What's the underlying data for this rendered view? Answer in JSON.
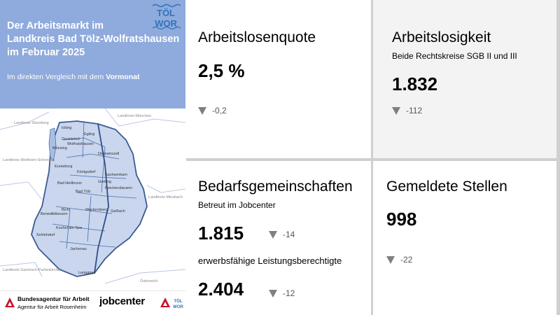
{
  "header": {
    "title_lines": [
      "Der Arbeitsmarkt im",
      "Landkreis Bad Tölz-Wolfratshausen",
      "im Februar 2025"
    ],
    "subtitle_prefix": "Im direkten Vergleich mit dem ",
    "subtitle_emph": "Vormonat",
    "logo_text_top": "TÖL",
    "logo_text_bottom": "WOR"
  },
  "map": {
    "region_labels": [
      "Icking",
      "Egling",
      "Münsing",
      "Geretsried",
      "Wolfratshausen",
      "Dietramszell",
      "Eurasburg",
      "Königsdorf",
      "Sachsenkam",
      "Reichersbeuern",
      "Bad Tölz",
      "Greiling",
      "Bad Heilbrunn",
      "Gaißach",
      "Wackersberg",
      "Bichl",
      "Benediktbeuern",
      "Kochel am See",
      "Schlehdorf",
      "Jachenau",
      "Lenggries"
    ],
    "neighbor_labels": [
      "Landkreis Starnberg",
      "Landkreis München",
      "Landkreis Weilheim-Schongau",
      "Landkreis Miesbach",
      "Landkreis Garmisch-Partenkirchen",
      "Österreich"
    ],
    "colors": {
      "fill": "#c9d6ee",
      "border": "#4a6ea8",
      "outline": "#3a5b8f"
    }
  },
  "footer": {
    "ba_name": "Bundesagentur für Arbeit",
    "ba_sub": "Agentur für Arbeit Rosenheim",
    "jobcenter": "jobcenter",
    "tw_small_top": "TÖL",
    "tw_small_bottom": "WOR"
  },
  "tiles": {
    "quote": {
      "title": "Arbeitslosenquote",
      "value": "2,5 %",
      "change": "-0,2"
    },
    "arbeitslosigkeit": {
      "title": "Arbeitslosigkeit",
      "sub": "Beide Rechtskreise SGB II und III",
      "value": "1.832",
      "change": "-112"
    },
    "bedarf": {
      "title": "Bedarfsgemeinschaften",
      "sub1": "Betreut im Jobcenter",
      "value1": "1.815",
      "change1": "-14",
      "sub2": "erwerbsfähige Leistungsberechtigte",
      "value2": "2.404",
      "change2": "-12"
    },
    "stellen": {
      "title": "Gemeldete Stellen",
      "value": "998",
      "change": "-22"
    }
  },
  "colors": {
    "header_bg": "#8faadc",
    "triangle": "#7f7f7f",
    "divider": "#d0d0d0",
    "ba_red": "#c8102e"
  }
}
